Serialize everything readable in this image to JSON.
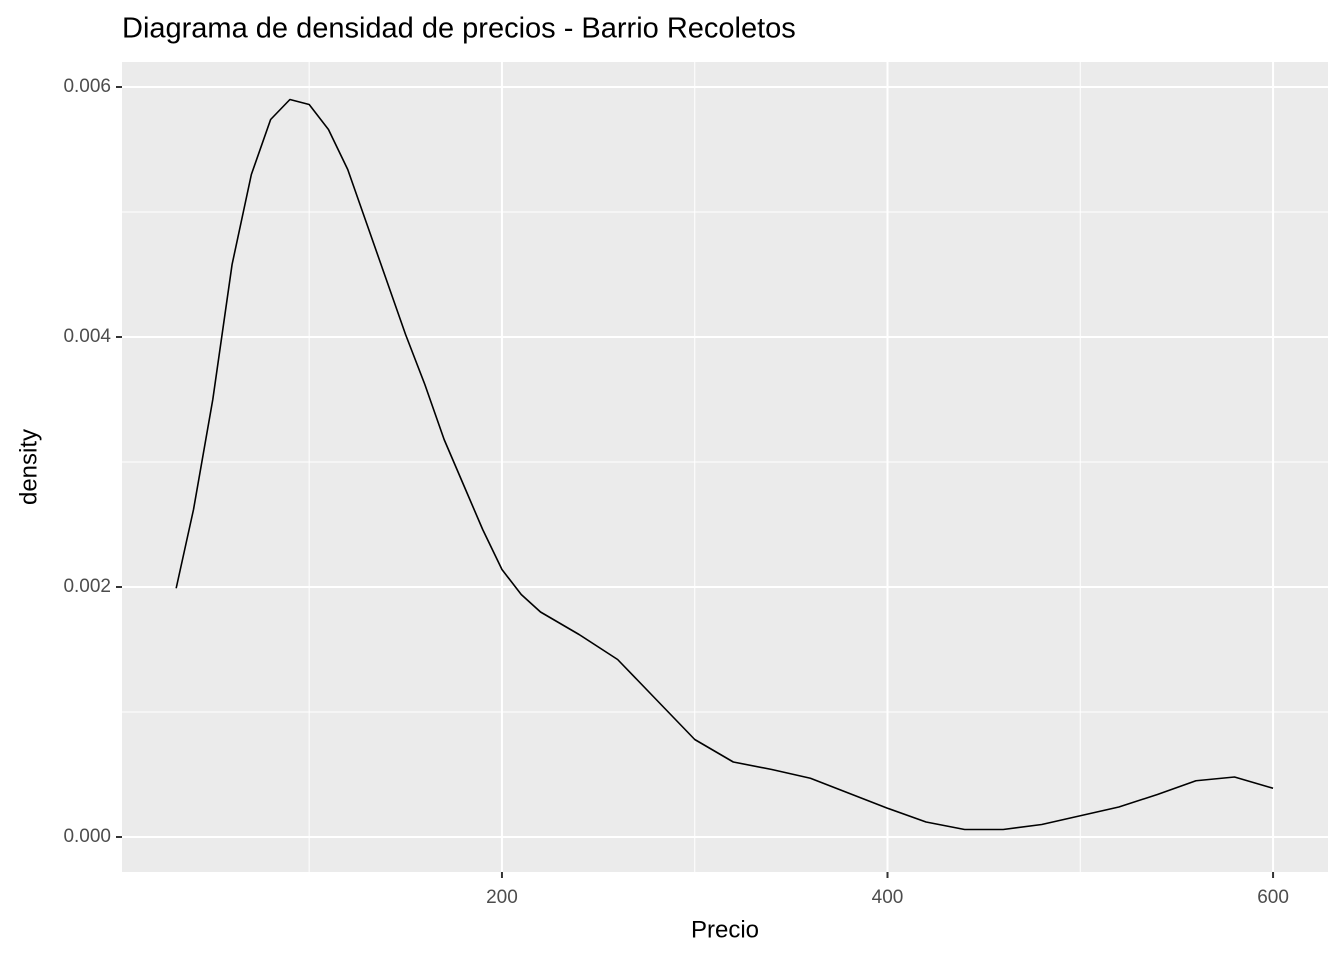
{
  "chart_data": {
    "type": "density",
    "title": "Diagrama de densidad de precios - Barrio Recoletos",
    "x_label": "Precio",
    "y_label": "density",
    "x": [
      31,
      40,
      50,
      60,
      70,
      80,
      90,
      100,
      110,
      120,
      130,
      140,
      150,
      160,
      170,
      180,
      190,
      200,
      210,
      220,
      240,
      260,
      280,
      300,
      320,
      340,
      360,
      380,
      400,
      420,
      440,
      460,
      480,
      500,
      520,
      540,
      560,
      580,
      600
    ],
    "values": [
      0.00199,
      0.00262,
      0.0035,
      0.00458,
      0.0053,
      0.00574,
      0.0059,
      0.00586,
      0.00566,
      0.00534,
      0.0049,
      0.00446,
      0.00402,
      0.00362,
      0.00318,
      0.00282,
      0.00246,
      0.00214,
      0.00194,
      0.0018,
      0.00162,
      0.00142,
      0.0011,
      0.00078,
      0.0006,
      0.00054,
      0.00047,
      0.00035,
      0.00023,
      0.00012,
      6e-05,
      6e-05,
      0.0001,
      0.00017,
      0.00024,
      0.00034,
      0.00045,
      0.00048,
      0.00039
    ],
    "color": "#000000",
    "xlim": [
      2.9,
      628.5
    ],
    "ylim": [
      -0.00028,
      0.0062
    ],
    "xticks": [
      200,
      400,
      600
    ],
    "xminor": [
      100,
      300,
      500
    ],
    "yticks": [
      {
        "value": 0,
        "label": "0.000"
      },
      {
        "value": 0.002,
        "label": "0.002"
      },
      {
        "value": 0.004,
        "label": "0.004"
      },
      {
        "value": 0.006,
        "label": "0.006"
      }
    ],
    "yminor": [
      0.001,
      0.003,
      0.005
    ],
    "grid": true
  }
}
